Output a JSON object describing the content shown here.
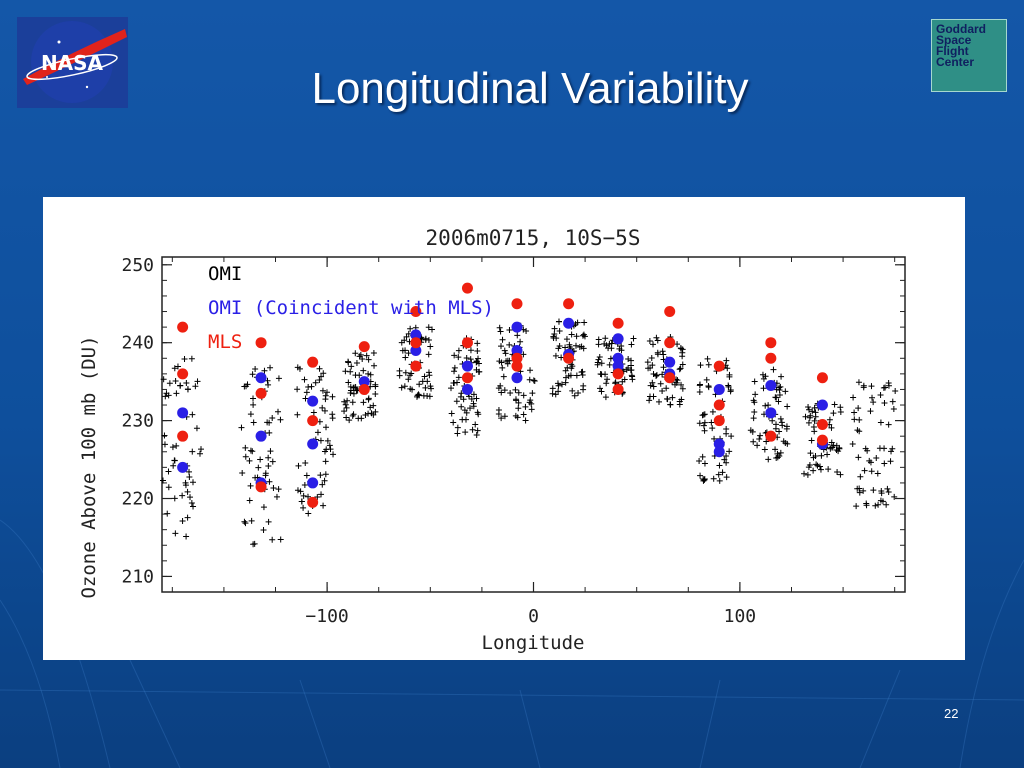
{
  "slide": {
    "title": "Longitudinal Variability",
    "page_number": "22"
  },
  "logos": {
    "nasa": "NASA",
    "gsfc_lines": [
      "Goddard",
      "Space",
      "Flight",
      "Center"
    ]
  },
  "colors": {
    "omi": "#000000",
    "omi_coincident": "#2a1fe6",
    "mls": "#ee2010"
  },
  "chart_data": {
    "type": "scatter",
    "title": "2006m0715, 10S−5S",
    "xlabel": "Longitude",
    "ylabel": "Ozone Above 100 mb (DU)",
    "xlim": [
      -180,
      180
    ],
    "ylim": [
      208,
      251
    ],
    "xticks": [
      -100,
      0,
      100
    ],
    "xtick_labels": [
      "−100",
      "0",
      "100"
    ],
    "yticks": [
      210,
      220,
      230,
      240,
      250
    ],
    "legend_position": "top-left",
    "series": [
      {
        "name": "OMI",
        "marker": "plus",
        "color": "#000000",
        "points_per_cluster": 60,
        "clusters": [
          {
            "lon": -172,
            "width": 22,
            "low": 215,
            "high": 238
          },
          {
            "lon": -132,
            "width": 20,
            "low": 214,
            "high": 237
          },
          {
            "lon": -106,
            "width": 18,
            "low": 218,
            "high": 237
          },
          {
            "lon": -84,
            "width": 16,
            "low": 230,
            "high": 239
          },
          {
            "lon": -57,
            "width": 16,
            "low": 233,
            "high": 242
          },
          {
            "lon": -33,
            "width": 14,
            "low": 228,
            "high": 241
          },
          {
            "lon": -8,
            "width": 18,
            "low": 230,
            "high": 243
          },
          {
            "lon": 17,
            "width": 16,
            "low": 233,
            "high": 243
          },
          {
            "lon": 40,
            "width": 18,
            "low": 233,
            "high": 241
          },
          {
            "lon": 64,
            "width": 18,
            "low": 232,
            "high": 241
          },
          {
            "lon": 88,
            "width": 16,
            "low": 222,
            "high": 238
          },
          {
            "lon": 114,
            "width": 18,
            "low": 225,
            "high": 237
          },
          {
            "lon": 140,
            "width": 18,
            "low": 223,
            "high": 233
          },
          {
            "lon": 165,
            "width": 22,
            "low": 219,
            "high": 235
          }
        ]
      },
      {
        "name": "OMI (Coincident with MLS)",
        "marker": "circle",
        "color": "#2a1fe6",
        "x": [
          -170,
          -170,
          -132,
          -132,
          -132,
          -107,
          -107,
          -107,
          -82,
          -57,
          -57,
          -32,
          -32,
          -8,
          -8,
          -8,
          17,
          17,
          41,
          41,
          41,
          66,
          66,
          90,
          90,
          90,
          115,
          115,
          140,
          140
        ],
        "y": [
          231,
          224,
          235.5,
          228,
          222,
          232.5,
          227,
          222,
          235,
          241,
          239,
          237,
          234,
          242,
          239,
          235.5,
          242.5,
          238.5,
          240.5,
          238,
          237,
          237.5,
          236,
          234,
          227,
          226,
          234.5,
          231,
          232,
          227
        ]
      },
      {
        "name": "MLS",
        "marker": "circle",
        "color": "#ee2010",
        "x": [
          -170,
          -170,
          -170,
          -132,
          -132,
          -132,
          -107,
          -107,
          -107,
          -82,
          -82,
          -57,
          -57,
          -57,
          -32,
          -32,
          -32,
          -8,
          -8,
          -8,
          17,
          17,
          41,
          41,
          41,
          66,
          66,
          66,
          90,
          90,
          90,
          115,
          115,
          115,
          140,
          140,
          140
        ],
        "y": [
          242,
          236,
          228,
          240,
          233.5,
          221.5,
          237.5,
          230,
          219.5,
          239.5,
          234,
          244,
          240,
          237,
          247,
          240,
          235.5,
          245,
          238,
          237,
          245,
          238,
          242.5,
          236,
          234,
          244,
          240,
          235.5,
          237,
          232,
          230,
          240,
          238,
          228,
          235.5,
          229.5,
          227.5
        ]
      }
    ]
  }
}
